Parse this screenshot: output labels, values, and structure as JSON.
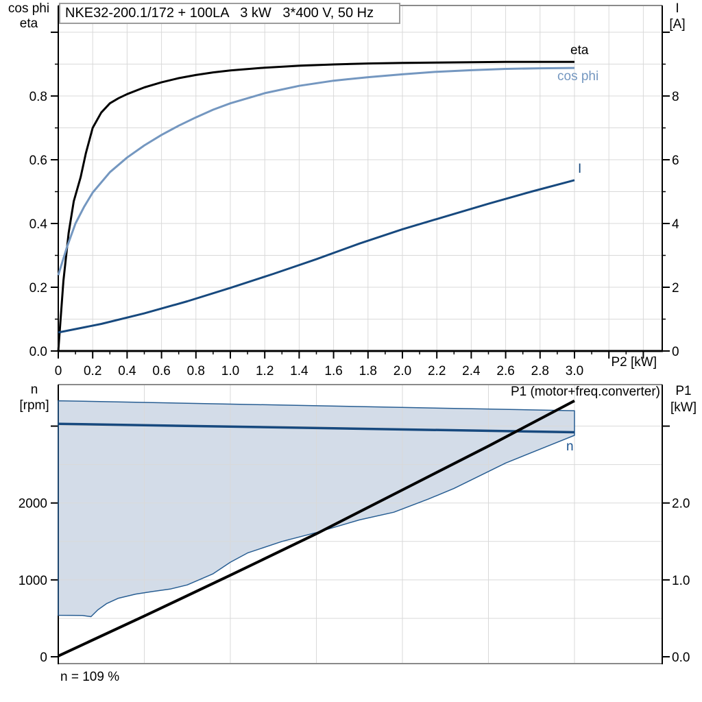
{
  "title_box": {
    "text": "NKE32-200.1/172 + 100LA   3 kW   3*400 V, 50 Hz"
  },
  "colors": {
    "black": "#000000",
    "cos_phi": "#7497C0",
    "navy": "#17497E",
    "band_fill": "#D3DCE8",
    "band_edge": "#275D92",
    "grid": "#D9D9D9",
    "frame": "#8A8A8A",
    "n_label": "#1B5390"
  },
  "chart_data": [
    {
      "type": "line",
      "x_axis": {
        "label": "P2 [kW]",
        "min": 0,
        "max": 3.51,
        "ticks": [
          {
            "v": 0,
            "t": "0"
          },
          {
            "v": 0.2,
            "t": "0.2"
          },
          {
            "v": 0.4,
            "t": "0.4"
          },
          {
            "v": 0.6,
            "t": "0.6"
          },
          {
            "v": 0.8,
            "t": "0.8"
          },
          {
            "v": 1.0,
            "t": "1.0"
          },
          {
            "v": 1.2,
            "t": "1.2"
          },
          {
            "v": 1.4,
            "t": "1.4"
          },
          {
            "v": 1.6,
            "t": "1.6"
          },
          {
            "v": 1.8,
            "t": "1.8"
          },
          {
            "v": 2.0,
            "t": "2.0"
          },
          {
            "v": 2.2,
            "t": "2.2"
          },
          {
            "v": 2.4,
            "t": "2.4"
          },
          {
            "v": 2.6,
            "t": "2.6"
          },
          {
            "v": 2.8,
            "t": "2.8"
          },
          {
            "v": 3.0,
            "t": "3.0"
          },
          {
            "v": 3.2,
            "t": ""
          },
          {
            "v": 3.4,
            "t": ""
          }
        ],
        "minor": [
          0.1,
          0.3,
          0.5,
          0.7,
          0.9,
          1.1,
          1.3,
          1.5,
          1.7,
          1.9,
          2.1,
          2.3,
          2.5,
          2.7,
          2.9,
          3.1,
          3.3
        ],
        "grid": [
          0.2,
          0.4,
          0.6,
          0.8,
          1.0,
          1.2,
          1.4,
          1.6,
          1.8,
          2.0,
          2.2,
          2.4,
          2.6,
          2.8,
          3.0,
          3.2,
          3.4
        ]
      },
      "y_left": {
        "title_lines": [
          "cos phi",
          "eta"
        ],
        "min": 0,
        "max": 1.084,
        "ticks": [
          {
            "v": 0,
            "t": "0.0"
          },
          {
            "v": 0.2,
            "t": "0.2"
          },
          {
            "v": 0.4,
            "t": "0.4"
          },
          {
            "v": 0.6,
            "t": "0.6"
          },
          {
            "v": 0.8,
            "t": "0.8"
          },
          {
            "v": 1.0,
            "t": ""
          }
        ],
        "minor": [
          0.1,
          0.3,
          0.5,
          0.7,
          0.9
        ],
        "grid": [
          0.1,
          0.2,
          0.3,
          0.4,
          0.5,
          0.6,
          0.7,
          0.8,
          0.9,
          1.0
        ]
      },
      "y_right": {
        "title_lines": [
          "I",
          "[A]"
        ],
        "min": 0,
        "max": 10.84,
        "ticks": [
          {
            "v": 0,
            "t": "0"
          },
          {
            "v": 2,
            "t": "2"
          },
          {
            "v": 4,
            "t": "4"
          },
          {
            "v": 6,
            "t": "6"
          },
          {
            "v": 8,
            "t": "8"
          },
          {
            "v": 10,
            "t": ""
          }
        ],
        "minor": [
          1,
          3,
          5,
          7,
          9
        ],
        "grid": []
      },
      "series": [
        {
          "name": "eta",
          "label": "eta",
          "color": "black",
          "width": 3,
          "axis": "left",
          "points": [
            [
              0,
              0
            ],
            [
              0.03,
              0.22
            ],
            [
              0.06,
              0.37
            ],
            [
              0.09,
              0.47
            ],
            [
              0.13,
              0.545
            ],
            [
              0.16,
              0.62
            ],
            [
              0.2,
              0.7
            ],
            [
              0.25,
              0.748
            ],
            [
              0.3,
              0.777
            ],
            [
              0.35,
              0.793
            ],
            [
              0.4,
              0.806
            ],
            [
              0.5,
              0.827
            ],
            [
              0.6,
              0.843
            ],
            [
              0.7,
              0.856
            ],
            [
              0.8,
              0.866
            ],
            [
              0.9,
              0.874
            ],
            [
              1.0,
              0.88
            ],
            [
              1.2,
              0.889
            ],
            [
              1.4,
              0.895
            ],
            [
              1.6,
              0.899
            ],
            [
              1.8,
              0.902
            ],
            [
              2.0,
              0.904
            ],
            [
              2.2,
              0.905
            ],
            [
              2.4,
              0.906
            ],
            [
              2.6,
              0.907
            ],
            [
              2.8,
              0.907
            ],
            [
              3.0,
              0.907
            ]
          ]
        },
        {
          "name": "cos-phi",
          "label": "cos phi",
          "color": "cos_phi",
          "width": 3,
          "axis": "left",
          "points": [
            [
              0,
              0.238
            ],
            [
              0.05,
              0.325
            ],
            [
              0.1,
              0.4
            ],
            [
              0.15,
              0.452
            ],
            [
              0.2,
              0.497
            ],
            [
              0.3,
              0.561
            ],
            [
              0.4,
              0.607
            ],
            [
              0.5,
              0.645
            ],
            [
              0.6,
              0.678
            ],
            [
              0.7,
              0.707
            ],
            [
              0.8,
              0.733
            ],
            [
              0.9,
              0.757
            ],
            [
              1.0,
              0.777
            ],
            [
              1.2,
              0.809
            ],
            [
              1.4,
              0.832
            ],
            [
              1.6,
              0.848
            ],
            [
              1.8,
              0.859
            ],
            [
              2.0,
              0.868
            ],
            [
              2.2,
              0.876
            ],
            [
              2.4,
              0.881
            ],
            [
              2.6,
              0.885
            ],
            [
              2.8,
              0.887
            ],
            [
              3.0,
              0.888
            ]
          ]
        },
        {
          "name": "current",
          "label": "I",
          "color": "navy",
          "width": 3,
          "axis": "right",
          "points": [
            [
              0,
              0.58
            ],
            [
              0.25,
              0.85
            ],
            [
              0.5,
              1.18
            ],
            [
              0.75,
              1.56
            ],
            [
              1.0,
              1.98
            ],
            [
              1.25,
              2.42
            ],
            [
              1.5,
              2.88
            ],
            [
              1.75,
              3.37
            ],
            [
              2.0,
              3.82
            ],
            [
              2.25,
              4.22
            ],
            [
              2.5,
              4.62
            ],
            [
              2.75,
              5.0
            ],
            [
              3.0,
              5.36
            ]
          ]
        }
      ]
    },
    {
      "type": "line",
      "x_axis": {
        "label": "",
        "min": 0,
        "max": 3.51,
        "ticks": [],
        "minor": [],
        "grid": [
          0.5,
          1.0,
          1.5,
          2.0,
          2.5,
          3.0
        ]
      },
      "y_left": {
        "title_lines": [
          "n",
          "[rpm]"
        ],
        "min": -89,
        "max": 3540,
        "ticks": [
          {
            "v": 0,
            "t": "0"
          },
          {
            "v": 1000,
            "t": "1000"
          },
          {
            "v": 2000,
            "t": "2000"
          },
          {
            "v": 3000,
            "t": ""
          }
        ],
        "minor": [],
        "grid": []
      },
      "y_right": {
        "title_lines": [
          "P1",
          "[kW]"
        ],
        "min": -0.089,
        "max": 3.54,
        "ticks": [
          {
            "v": 0,
            "t": "0.0"
          },
          {
            "v": 1,
            "t": "1.0"
          },
          {
            "v": 2,
            "t": "2.0"
          },
          {
            "v": 3,
            "t": ""
          }
        ],
        "minor": [],
        "grid": [
          0.5,
          1.0,
          1.5,
          2.0,
          2.5,
          3.0
        ]
      },
      "band": {
        "name": "speed-range",
        "fill": "band_fill",
        "edge": "band_edge",
        "axis": "left",
        "top": [
          [
            0,
            3330
          ],
          [
            3.0,
            3200
          ]
        ],
        "bottom": [
          [
            0,
            540
          ],
          [
            0.14,
            537
          ],
          [
            0.19,
            522
          ],
          [
            0.23,
            610
          ],
          [
            0.28,
            690
          ],
          [
            0.35,
            762
          ],
          [
            0.45,
            815
          ],
          [
            0.55,
            850
          ],
          [
            0.65,
            880
          ],
          [
            0.75,
            935
          ],
          [
            0.9,
            1080
          ],
          [
            1.0,
            1230
          ],
          [
            1.1,
            1350
          ],
          [
            1.3,
            1500
          ],
          [
            1.5,
            1616
          ],
          [
            1.75,
            1780
          ],
          [
            1.95,
            1880
          ],
          [
            2.15,
            2050
          ],
          [
            2.3,
            2190
          ],
          [
            2.6,
            2520
          ],
          [
            2.8,
            2700
          ],
          [
            3.0,
            2880
          ]
        ]
      },
      "series": [
        {
          "name": "speed",
          "label": "n",
          "color": "navy",
          "width": 3.5,
          "axis": "left",
          "points": [
            [
              0,
              3030
            ],
            [
              3.0,
              2920
            ]
          ]
        },
        {
          "name": "p1-input-power",
          "label": "P1 (motor+freq.converter)",
          "color": "black",
          "width": 4,
          "axis": "right",
          "points": [
            [
              0,
              0.01
            ],
            [
              0.5,
              0.53
            ],
            [
              1.0,
              1.06
            ],
            [
              1.5,
              1.6
            ],
            [
              2.0,
              2.17
            ],
            [
              2.5,
              2.74
            ],
            [
              3.0,
              3.33
            ]
          ]
        }
      ],
      "annotation": "n = 109 %"
    }
  ]
}
